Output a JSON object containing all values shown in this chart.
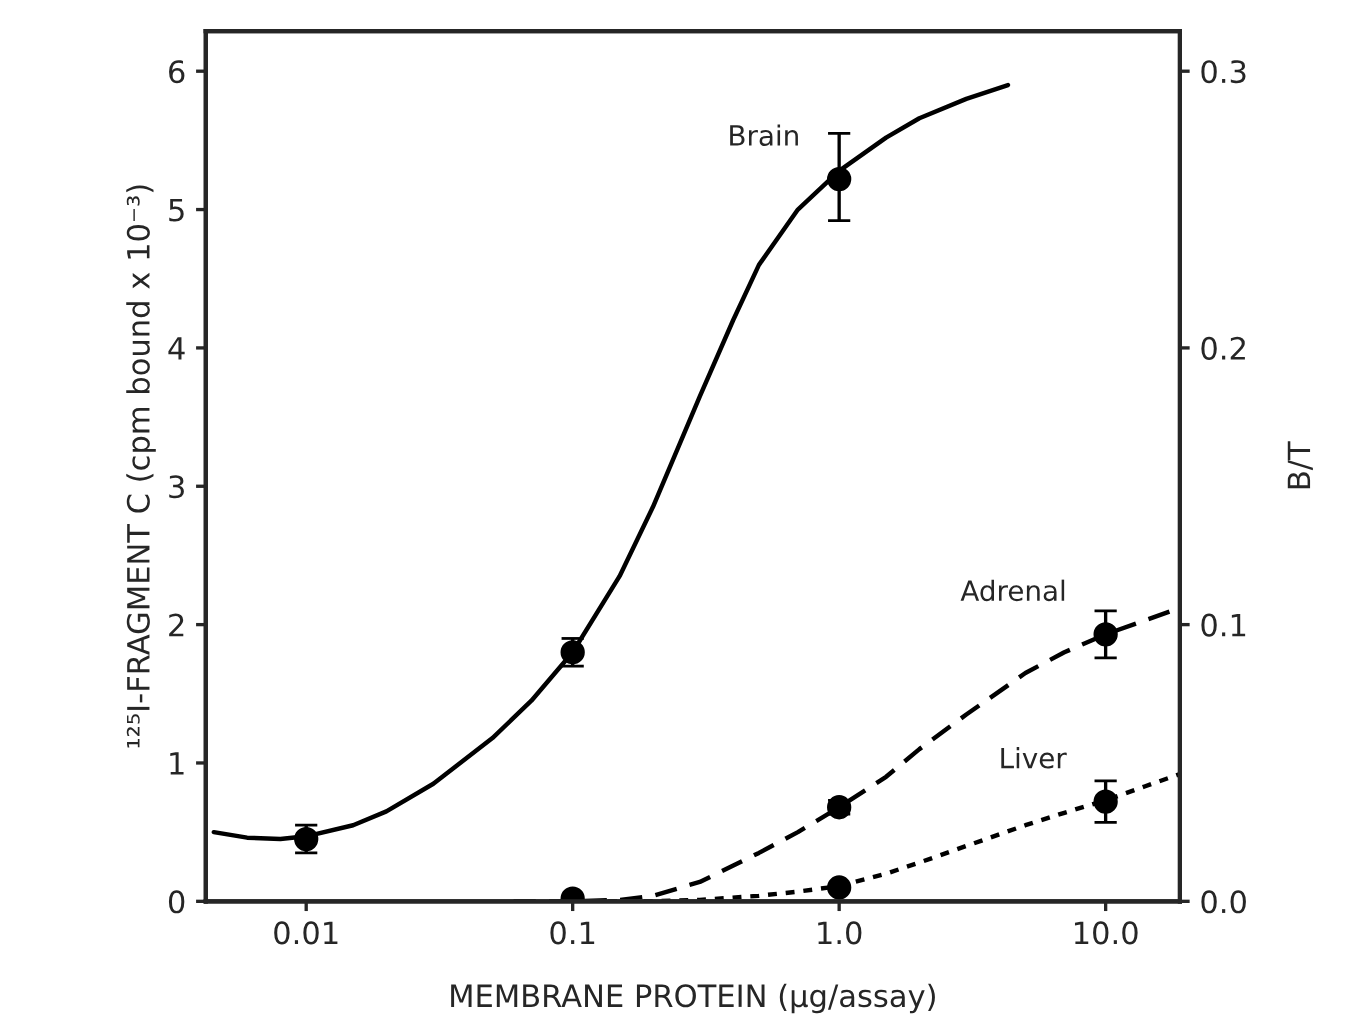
{
  "chart_data": {
    "type": "scatter",
    "xlabel": "MEMBRANE PROTEIN (μg/assay)",
    "ylabel": "¹²⁵I-FRAGMENT C (cpm bound x 10⁻³)",
    "y2label": "B/T",
    "log": "x",
    "xlim": [
      0.0042,
      19
    ],
    "xticks": [
      0.01,
      0.1,
      {
        "value": 1,
        "label": "1.0"
      },
      {
        "value": 10,
        "label": "10.0"
      }
    ],
    "ylim": [
      0,
      6.29
    ],
    "yticks": [
      0,
      1,
      2,
      3,
      4,
      5,
      6
    ],
    "y2lim": [
      0,
      0.3145
    ],
    "y2ticks": [
      {
        "value": 0,
        "label": "0.0"
      },
      0.1,
      0.2,
      0.3
    ],
    "grid": false,
    "legend": false,
    "series": [
      {
        "name": "Brain",
        "color": "#000000",
        "marker": "circle",
        "x": [
          0.01,
          0.1,
          1.0
        ],
        "values": [
          0.45,
          1.8,
          5.22
        ],
        "errors": [
          0.1,
          0.1,
          [
            4.92,
            5.55
          ]
        ]
      },
      {
        "name": "Adrenal",
        "color": "#000000",
        "marker": "circle",
        "x": [
          0.1,
          1.0,
          10
        ],
        "values": [
          0.02,
          0.68,
          1.93
        ],
        "errors": [
          null,
          0.05,
          0.17
        ]
      },
      {
        "name": "Liver",
        "color": "#000000",
        "marker": "circle",
        "x": [
          1.0,
          10
        ],
        "values": [
          0.1,
          0.72
        ],
        "errors": [
          null,
          0.15
        ]
      },
      {
        "type": "line",
        "color": "#000000",
        "line_style": "solid",
        "x": [
          0.0045,
          0.006,
          0.008,
          0.01,
          0.015,
          0.02,
          0.03,
          0.05,
          0.07,
          0.1,
          0.15,
          0.2,
          0.3,
          0.4,
          0.5,
          0.7,
          1.0,
          1.5,
          2,
          3,
          4.3
        ],
        "values": [
          0.5,
          0.46,
          0.45,
          0.47,
          0.55,
          0.65,
          0.85,
          1.18,
          1.45,
          1.8,
          2.35,
          2.85,
          3.65,
          4.2,
          4.6,
          5.0,
          5.28,
          5.52,
          5.66,
          5.8,
          5.9
        ]
      },
      {
        "type": "line",
        "color": "#000000",
        "line_style": "dashed",
        "x": [
          0.06,
          0.1,
          0.15,
          0.2,
          0.3,
          0.5,
          0.7,
          1.0,
          1.5,
          2,
          3,
          5,
          7,
          10,
          14,
          19
        ],
        "values": [
          0.0,
          0.0,
          0.01,
          0.04,
          0.14,
          0.35,
          0.5,
          0.68,
          0.9,
          1.1,
          1.35,
          1.65,
          1.8,
          1.93,
          2.03,
          2.12
        ]
      },
      {
        "type": "line",
        "color": "#000000",
        "line_style": "dotted",
        "x": [
          0.1,
          0.2,
          0.3,
          0.5,
          0.7,
          1.0,
          1.5,
          2,
          3,
          5,
          7,
          10,
          14,
          19
        ],
        "values": [
          0.0,
          0.0,
          0.01,
          0.04,
          0.07,
          0.11,
          0.2,
          0.28,
          0.4,
          0.55,
          0.64,
          0.73,
          0.83,
          0.92
        ]
      }
    ]
  }
}
